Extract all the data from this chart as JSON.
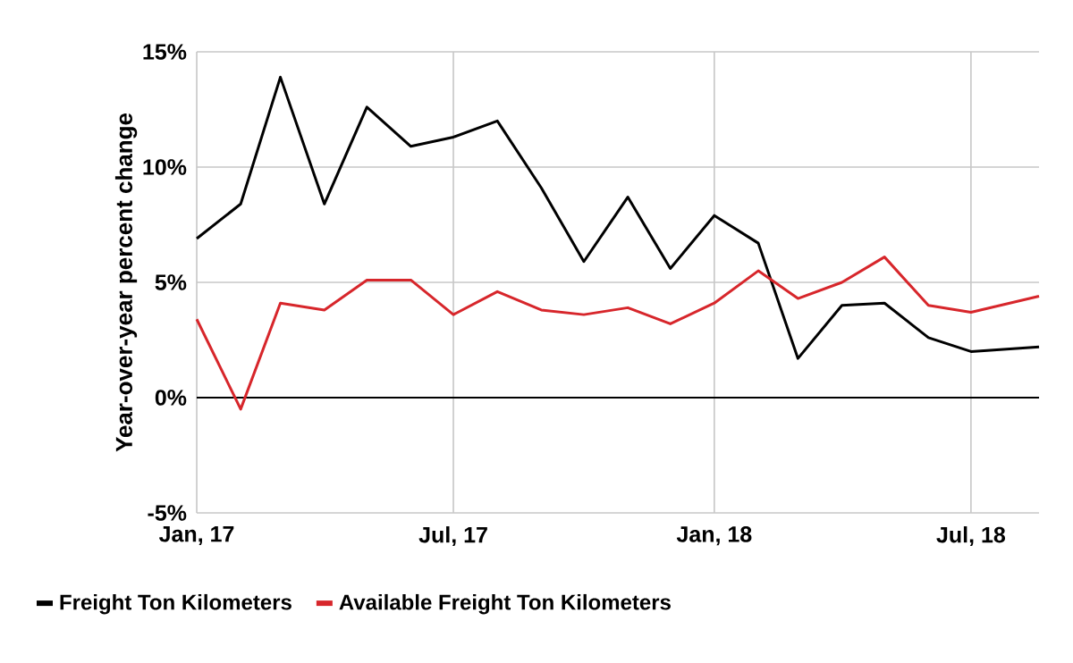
{
  "chart_data": {
    "type": "line",
    "ylabel": "Year-over-year percent change",
    "x": [
      "2017-01",
      "2017-02",
      "2017-03",
      "2017-04",
      "2017-05",
      "2017-06",
      "2017-07",
      "2017-08",
      "2017-09",
      "2017-10",
      "2017-11",
      "2017-12",
      "2018-01",
      "2018-02",
      "2018-03",
      "2018-04",
      "2018-05",
      "2018-06",
      "2018-07",
      "2018-08-18"
    ],
    "series": [
      {
        "name": "Freight Ton Kilometers",
        "color": "#000000",
        "values": [
          6.9,
          8.4,
          13.9,
          8.4,
          12.6,
          10.9,
          11.3,
          12.0,
          9.1,
          5.9,
          8.7,
          5.6,
          7.9,
          6.7,
          1.7,
          4.0,
          4.1,
          2.6,
          2.0,
          2.2
        ]
      },
      {
        "name": "Available Freight Ton Kilometers",
        "color": "#d7262b",
        "values": [
          3.4,
          -0.5,
          4.1,
          3.8,
          5.1,
          5.1,
          3.6,
          4.6,
          3.8,
          3.6,
          3.9,
          3.2,
          4.1,
          5.5,
          4.3,
          5.0,
          6.1,
          4.0,
          3.7,
          4.4
        ]
      }
    ],
    "xlim": [
      "2017-01",
      "2018-08-18"
    ],
    "xticks": [
      {
        "value": "2017-01",
        "label": "Jan, 17"
      },
      {
        "value": "2017-07",
        "label": "Jul, 17"
      },
      {
        "value": "2018-01",
        "label": "Jan, 18"
      },
      {
        "value": "2018-07",
        "label": "Jul, 18"
      }
    ],
    "ylim": [
      -5,
      15
    ],
    "yticks": [
      {
        "value": -5,
        "label": "-5%"
      },
      {
        "value": 0,
        "label": "0%"
      },
      {
        "value": 5,
        "label": "5%"
      },
      {
        "value": 10,
        "label": "10%"
      },
      {
        "value": 15,
        "label": "15%"
      }
    ],
    "ref_lines": [
      {
        "axis": "y",
        "value": 0,
        "color": "#000000"
      }
    ],
    "grid": true,
    "legend": "bottom left"
  }
}
